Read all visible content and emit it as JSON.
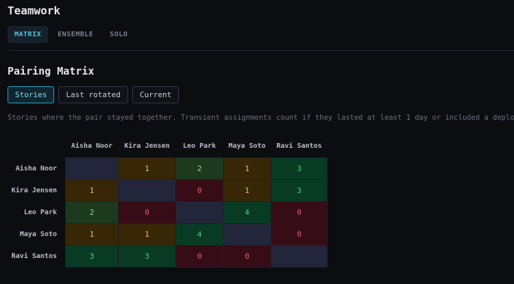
{
  "header": {
    "title": "Teamwork",
    "tabs": [
      "MATRIX",
      "ENSEMBLE",
      "SOLO"
    ],
    "active_tab": 0
  },
  "section": {
    "title": "Pairing Matrix",
    "filters": [
      "Stories",
      "Last rotated",
      "Current"
    ],
    "active_filter": 0,
    "description": "Stories where the pair stayed together. Transient assignments count if they lasted at least 1 day or included a deploy."
  },
  "table": {
    "columns": [
      "Aisha Noor",
      "Kira Jensen",
      "Leo Park",
      "Maya Soto",
      "Ravi Santos"
    ],
    "rows": [
      {
        "label": "Aisha Noor",
        "values": [
          null,
          1,
          2,
          1,
          3
        ]
      },
      {
        "label": "Kira Jensen",
        "values": [
          1,
          null,
          0,
          1,
          3
        ]
      },
      {
        "label": "Leo Park",
        "values": [
          2,
          0,
          null,
          4,
          0
        ]
      },
      {
        "label": "Maya Soto",
        "values": [
          1,
          1,
          4,
          null,
          0
        ]
      },
      {
        "label": "Ravi Santos",
        "values": [
          3,
          3,
          0,
          0,
          null
        ]
      }
    ]
  }
}
